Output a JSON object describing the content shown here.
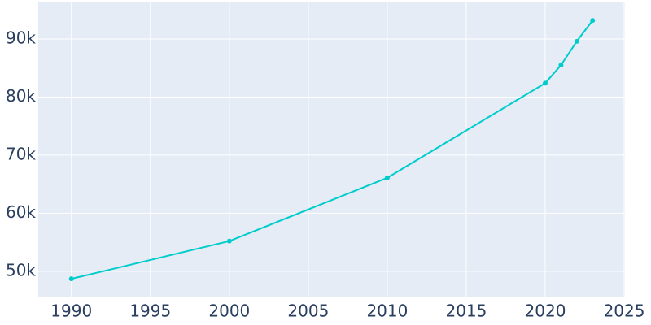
{
  "chart_data": {
    "type": "line",
    "x": [
      1990,
      2000,
      2010,
      2020,
      2021,
      2022,
      2023
    ],
    "series": [
      {
        "color": "#00cccc",
        "values": [
          48700,
          55200,
          66100,
          82400,
          85500,
          89600,
          93200
        ]
      }
    ],
    "xlim": [
      1987.9,
      2025.05
    ],
    "xticks": [
      1990,
      1995,
      2000,
      2005,
      2010,
      2015,
      2020,
      2025
    ],
    "ylim": [
      45500,
      96300
    ],
    "yticks": [
      {
        "value": 50000,
        "label": "50k"
      },
      {
        "value": 60000,
        "label": "60k"
      },
      {
        "value": 70000,
        "label": "70k"
      },
      {
        "value": 80000,
        "label": "80k"
      },
      {
        "value": 90000,
        "label": "90k"
      }
    ],
    "grid": true
  }
}
